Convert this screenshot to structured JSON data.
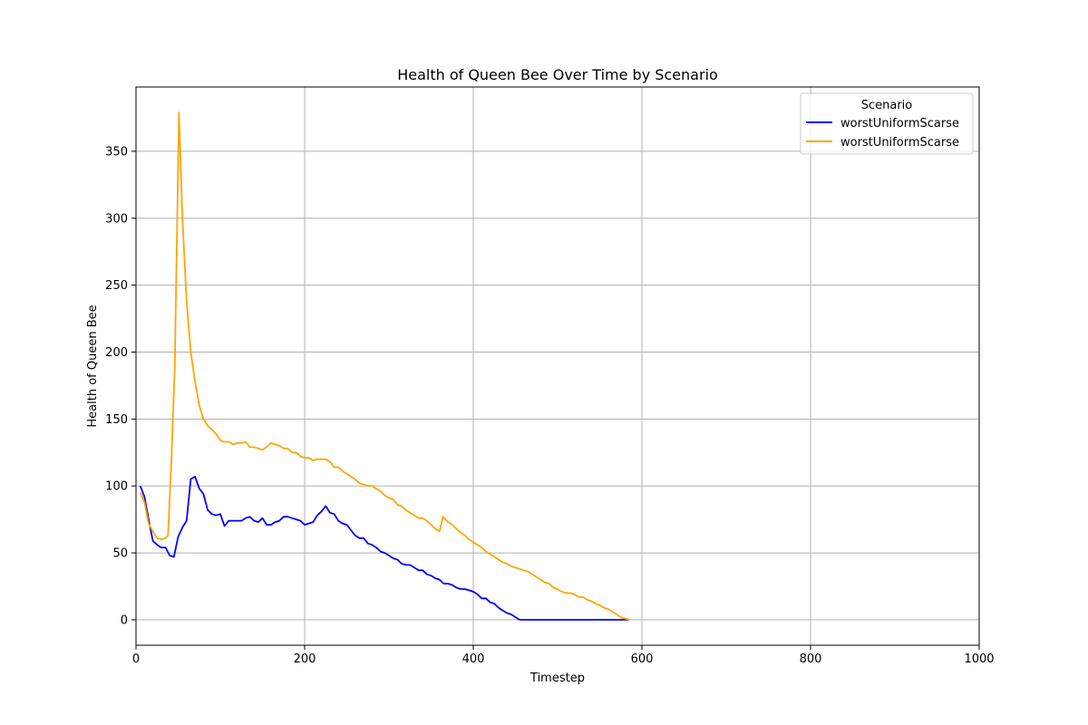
{
  "chart_data": {
    "type": "line",
    "title": "Health of Queen Bee Over Time by Scenario",
    "xlabel": "Timestep",
    "ylabel": "Health of Queen Bee",
    "xlim": [
      0,
      1000
    ],
    "ylim": [
      -19,
      398
    ],
    "xticks": [
      0,
      200,
      400,
      600,
      800,
      1000
    ],
    "yticks": [
      0,
      50,
      100,
      150,
      200,
      250,
      300,
      350
    ],
    "grid": true,
    "legend": {
      "title": "Scenario",
      "placement": "upper-right"
    },
    "series": [
      {
        "name": "worstUniformScarse",
        "color": "#0000ff",
        "points": [
          [
            5,
            100
          ],
          [
            10,
            92
          ],
          [
            15,
            75
          ],
          [
            20,
            59
          ],
          [
            25,
            56
          ],
          [
            30,
            54
          ],
          [
            35,
            54
          ],
          [
            40,
            48
          ],
          [
            45,
            47
          ],
          [
            50,
            62
          ],
          [
            55,
            69
          ],
          [
            60,
            74
          ],
          [
            65,
            105
          ],
          [
            70,
            107
          ],
          [
            75,
            98
          ],
          [
            80,
            94
          ],
          [
            85,
            82
          ],
          [
            90,
            79
          ],
          [
            95,
            78
          ],
          [
            100,
            79
          ],
          [
            105,
            70
          ],
          [
            110,
            74
          ],
          [
            115,
            74
          ],
          [
            120,
            74
          ],
          [
            125,
            74
          ],
          [
            130,
            76
          ],
          [
            135,
            77
          ],
          [
            140,
            74
          ],
          [
            145,
            73
          ],
          [
            150,
            76
          ],
          [
            155,
            71
          ],
          [
            160,
            71
          ],
          [
            165,
            73
          ],
          [
            170,
            74
          ],
          [
            175,
            77
          ],
          [
            180,
            77
          ],
          [
            185,
            76
          ],
          [
            190,
            75
          ],
          [
            195,
            74
          ],
          [
            200,
            71
          ],
          [
            205,
            72
          ],
          [
            210,
            73
          ],
          [
            215,
            78
          ],
          [
            220,
            81
          ],
          [
            225,
            85
          ],
          [
            230,
            80
          ],
          [
            235,
            79
          ],
          [
            240,
            74
          ],
          [
            245,
            72
          ],
          [
            250,
            71
          ],
          [
            255,
            67
          ],
          [
            260,
            63
          ],
          [
            265,
            61
          ],
          [
            270,
            61
          ],
          [
            275,
            57
          ],
          [
            280,
            56
          ],
          [
            285,
            54
          ],
          [
            290,
            51
          ],
          [
            295,
            50
          ],
          [
            300,
            48
          ],
          [
            305,
            46
          ],
          [
            310,
            45
          ],
          [
            315,
            42
          ],
          [
            320,
            41
          ],
          [
            325,
            41
          ],
          [
            330,
            39
          ],
          [
            335,
            37
          ],
          [
            340,
            37
          ],
          [
            345,
            34
          ],
          [
            350,
            33
          ],
          [
            355,
            31
          ],
          [
            360,
            30
          ],
          [
            365,
            27
          ],
          [
            370,
            27
          ],
          [
            375,
            26
          ],
          [
            380,
            24
          ],
          [
            385,
            23
          ],
          [
            390,
            23
          ],
          [
            395,
            22
          ],
          [
            400,
            21
          ],
          [
            405,
            19
          ],
          [
            410,
            16
          ],
          [
            415,
            16
          ],
          [
            420,
            13
          ],
          [
            425,
            12
          ],
          [
            430,
            9
          ],
          [
            435,
            7
          ],
          [
            440,
            5
          ],
          [
            445,
            4
          ],
          [
            450,
            2
          ],
          [
            455,
            0
          ],
          [
            500,
            0
          ],
          [
            550,
            0
          ],
          [
            585,
            0
          ]
        ]
      },
      {
        "name": "worstUniformScarse",
        "color": "#ffa500",
        "points": [
          [
            5,
            95
          ],
          [
            10,
            88
          ],
          [
            15,
            72
          ],
          [
            20,
            66
          ],
          [
            25,
            61
          ],
          [
            30,
            60
          ],
          [
            35,
            61
          ],
          [
            38,
            63
          ],
          [
            42,
            120
          ],
          [
            46,
            190
          ],
          [
            51,
            379
          ],
          [
            55,
            300
          ],
          [
            60,
            238
          ],
          [
            65,
            200
          ],
          [
            70,
            178
          ],
          [
            75,
            160
          ],
          [
            80,
            150
          ],
          [
            85,
            145
          ],
          [
            90,
            142
          ],
          [
            95,
            139
          ],
          [
            100,
            134
          ],
          [
            105,
            133
          ],
          [
            110,
            133
          ],
          [
            115,
            131
          ],
          [
            120,
            132
          ],
          [
            125,
            132
          ],
          [
            130,
            133
          ],
          [
            135,
            129
          ],
          [
            140,
            129
          ],
          [
            145,
            128
          ],
          [
            150,
            127
          ],
          [
            155,
            129
          ],
          [
            160,
            132
          ],
          [
            165,
            131
          ],
          [
            170,
            130
          ],
          [
            175,
            128
          ],
          [
            180,
            128
          ],
          [
            185,
            125
          ],
          [
            190,
            125
          ],
          [
            195,
            122
          ],
          [
            200,
            121
          ],
          [
            205,
            121
          ],
          [
            210,
            119
          ],
          [
            215,
            120
          ],
          [
            220,
            120
          ],
          [
            225,
            120
          ],
          [
            230,
            118
          ],
          [
            235,
            114
          ],
          [
            240,
            114
          ],
          [
            245,
            111
          ],
          [
            250,
            109
          ],
          [
            255,
            107
          ],
          [
            260,
            105
          ],
          [
            265,
            102
          ],
          [
            270,
            101
          ],
          [
            275,
            100
          ],
          [
            280,
            100
          ],
          [
            285,
            98
          ],
          [
            290,
            96
          ],
          [
            295,
            93
          ],
          [
            300,
            91
          ],
          [
            305,
            90
          ],
          [
            310,
            86
          ],
          [
            315,
            85
          ],
          [
            320,
            82
          ],
          [
            325,
            80
          ],
          [
            330,
            78
          ],
          [
            335,
            76
          ],
          [
            340,
            76
          ],
          [
            345,
            74
          ],
          [
            350,
            71
          ],
          [
            355,
            68
          ],
          [
            360,
            66
          ],
          [
            364,
            77
          ],
          [
            370,
            73
          ],
          [
            375,
            71
          ],
          [
            380,
            68
          ],
          [
            385,
            65
          ],
          [
            390,
            63
          ],
          [
            395,
            60
          ],
          [
            400,
            58
          ],
          [
            405,
            56
          ],
          [
            410,
            54
          ],
          [
            415,
            51
          ],
          [
            420,
            49
          ],
          [
            425,
            47
          ],
          [
            430,
            45
          ],
          [
            435,
            43
          ],
          [
            440,
            42
          ],
          [
            445,
            40
          ],
          [
            450,
            39
          ],
          [
            455,
            38
          ],
          [
            460,
            37
          ],
          [
            465,
            36
          ],
          [
            470,
            34
          ],
          [
            475,
            32
          ],
          [
            480,
            30
          ],
          [
            485,
            28
          ],
          [
            490,
            27
          ],
          [
            495,
            24
          ],
          [
            500,
            23
          ],
          [
            505,
            21
          ],
          [
            510,
            20
          ],
          [
            515,
            20
          ],
          [
            520,
            19
          ],
          [
            525,
            17
          ],
          [
            530,
            17
          ],
          [
            535,
            15
          ],
          [
            540,
            14
          ],
          [
            545,
            12
          ],
          [
            550,
            11
          ],
          [
            555,
            9
          ],
          [
            560,
            8
          ],
          [
            565,
            6
          ],
          [
            570,
            4
          ],
          [
            575,
            2
          ],
          [
            580,
            1
          ],
          [
            585,
            0
          ]
        ]
      }
    ]
  }
}
